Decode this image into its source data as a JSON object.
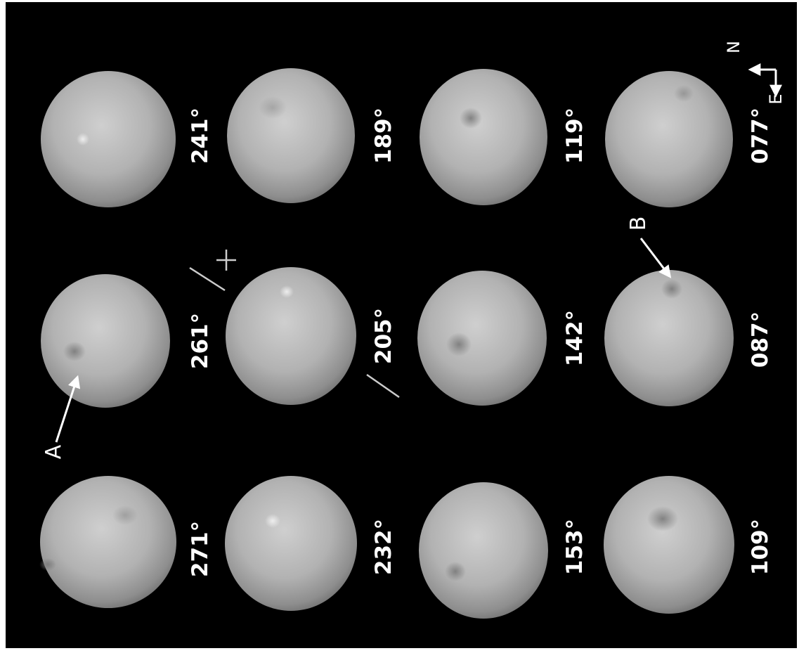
{
  "panels": [
    {
      "row": 0,
      "col": 0,
      "label": "271°"
    },
    {
      "row": 0,
      "col": 1,
      "label": "261°"
    },
    {
      "row": 0,
      "col": 2,
      "label": "241°"
    },
    {
      "row": 1,
      "col": 0,
      "label": "232°"
    },
    {
      "row": 1,
      "col": 1,
      "label": "205°"
    },
    {
      "row": 1,
      "col": 2,
      "label": "189°"
    },
    {
      "row": 2,
      "col": 0,
      "label": "153°"
    },
    {
      "row": 2,
      "col": 1,
      "label": "142°"
    },
    {
      "row": 2,
      "col": 2,
      "label": "119°"
    },
    {
      "row": 3,
      "col": 0,
      "label": "109°"
    },
    {
      "row": 3,
      "col": 1,
      "label": "087°"
    },
    {
      "row": 3,
      "col": 2,
      "label": "077°"
    }
  ],
  "annotations": {
    "feature_a": "A",
    "feature_b": "B"
  },
  "compass": {
    "north": "N",
    "east": "E"
  },
  "colors": {
    "background": "#000000",
    "label": "#ffffff",
    "body_light": "#cfcfcf",
    "body_dark": "#6a6a6a"
  }
}
